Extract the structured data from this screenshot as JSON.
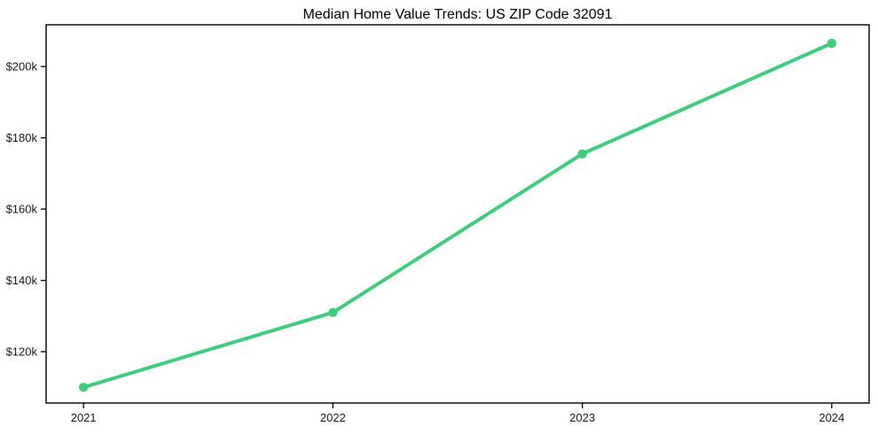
{
  "chart_data": {
    "type": "line",
    "title": "Median Home Value Trends: US ZIP Code 32091",
    "x": [
      2021,
      2022,
      2023,
      2024
    ],
    "x_tick_labels": [
      "2021",
      "2022",
      "2023",
      "2024"
    ],
    "values": [
      110000,
      131000,
      175500,
      206500
    ],
    "series_name": "Median Home Value",
    "y_ticks": [
      120000,
      140000,
      160000,
      180000,
      200000
    ],
    "y_tick_labels": [
      "$120k",
      "$140k",
      "$160k",
      "$180k",
      "$200k"
    ],
    "xlim": [
      2020.85,
      2024.15
    ],
    "ylim": [
      105600,
      211700
    ],
    "xlabel": "",
    "ylabel": "",
    "grid": false,
    "legend": null,
    "line_color": "#3dcd7c",
    "marker": "circle",
    "marker_color": "#3dcd7c",
    "axis_color": "#000000",
    "background_color": "#ffffff"
  }
}
